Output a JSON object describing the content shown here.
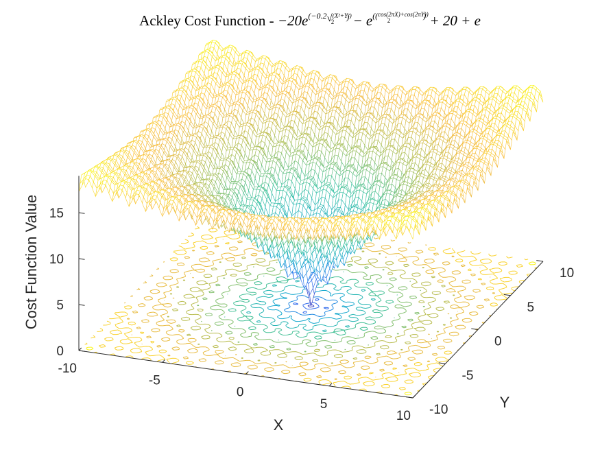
{
  "chart_data": {
    "type": "surface-mesh-with-contour",
    "title": {
      "prefix": "Ackley Cost Function - ",
      "formula": "−20e^(−0.2√((X²+Y²)/2)) − e^((cos(2πX)+cos(2πY))/2) + 20 + e",
      "part1": "−20e",
      "exp1_start": "(−0.2",
      "exp1_frac": "(X²+Y²)",
      "exp1_den": "2",
      "exp1_end": ")",
      "part2": " − e",
      "exp2_start": "((",
      "exp2_frac": "cos(2πX)+cos(2πY))",
      "exp2_den": "2",
      "exp2_end": ")",
      "part3": " + 20 + e"
    },
    "xlabel": "X",
    "ylabel": "Y",
    "zlabel": "Cost Function Value",
    "xlim": [
      -10,
      10
    ],
    "ylim": [
      -10,
      10
    ],
    "zlim": [
      0,
      19
    ],
    "x_ticks": [
      -10,
      -5,
      0,
      5,
      10
    ],
    "y_ticks": [
      -10,
      -5,
      0,
      5,
      10
    ],
    "z_ticks": [
      0,
      5,
      10,
      15
    ],
    "x_tick_labels": [
      "-10",
      "-5",
      "0",
      "5",
      "10"
    ],
    "y_tick_labels": [
      "-10",
      "-5",
      "0",
      "5",
      "10"
    ],
    "z_tick_labels": [
      "0",
      "5",
      "10",
      "15"
    ],
    "function": "ackley",
    "minimum": {
      "x": 0,
      "y": 0,
      "z": 0
    },
    "colormap": "parula",
    "colormap_stops": [
      "#3e26a8",
      "#2c6ef1",
      "#15a7cf",
      "#35c0a0",
      "#a4be56",
      "#f9bb3d",
      "#f9fb15"
    ],
    "grid": false
  }
}
